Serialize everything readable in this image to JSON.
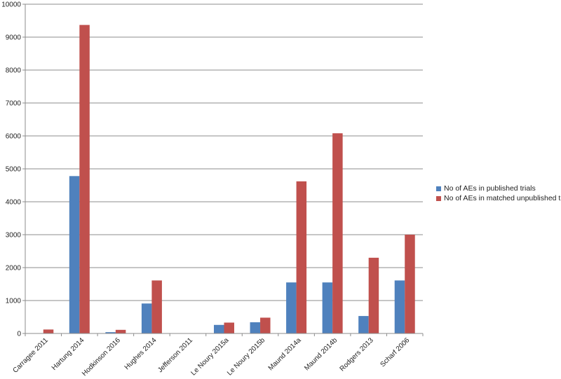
{
  "chart_data": {
    "type": "bar",
    "categories": [
      "Carragee 2011",
      "Hartung 2014",
      "Hodkinson 2016",
      "Hughes 2014",
      "Jefferson 2011",
      "Le Noury 2015a",
      "Le Noury 2015b",
      "Maund 2014a",
      "Maund 2014b",
      "Rodgers 2013",
      "Scharf 2006"
    ],
    "series": [
      {
        "name": "No of AEs in published trials",
        "color": "#4f81bd",
        "values": [
          10,
          4780,
          40,
          910,
          5,
          260,
          340,
          1550,
          1550,
          530,
          1610
        ]
      },
      {
        "name": "No of AEs in matched unpublished trials",
        "color": "#c0504d",
        "values": [
          120,
          9370,
          110,
          1610,
          10,
          330,
          480,
          4620,
          6080,
          2300,
          3000
        ]
      }
    ],
    "ylim": [
      0,
      10000
    ],
    "yticks": [
      0,
      1000,
      2000,
      3000,
      4000,
      5000,
      6000,
      7000,
      8000,
      9000,
      10000
    ],
    "grid": true,
    "legend_position": "right",
    "title": "",
    "xlabel": "",
    "ylabel": ""
  }
}
